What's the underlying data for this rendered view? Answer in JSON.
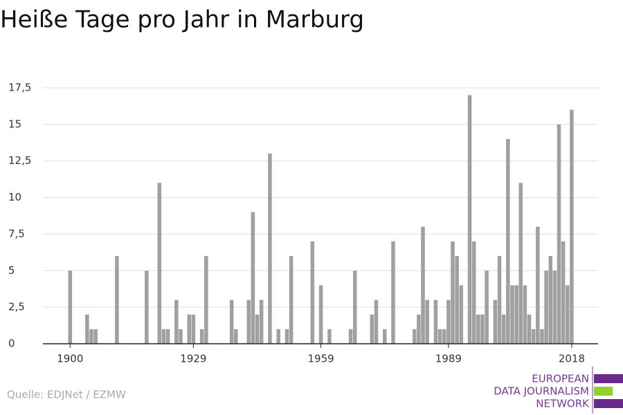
{
  "chart_data": {
    "type": "bar",
    "title": "Heiße Tage pro Jahr in Marburg",
    "source": "Quelle: EDJNet / EZMW",
    "logo": [
      "EUROPEAN",
      "DATA JOURNALISM",
      "NETWORK"
    ],
    "color": "#a0a0a0",
    "x": [
      1900,
      1901,
      1902,
      1903,
      1904,
      1905,
      1906,
      1907,
      1908,
      1909,
      1910,
      1911,
      1912,
      1913,
      1914,
      1915,
      1916,
      1917,
      1918,
      1919,
      1920,
      1921,
      1922,
      1923,
      1924,
      1925,
      1926,
      1927,
      1928,
      1929,
      1930,
      1931,
      1932,
      1933,
      1934,
      1935,
      1936,
      1937,
      1938,
      1939,
      1940,
      1941,
      1942,
      1943,
      1944,
      1945,
      1946,
      1947,
      1948,
      1949,
      1950,
      1951,
      1952,
      1953,
      1954,
      1955,
      1956,
      1957,
      1958,
      1959,
      1960,
      1961,
      1962,
      1963,
      1964,
      1965,
      1966,
      1967,
      1968,
      1969,
      1970,
      1971,
      1972,
      1973,
      1974,
      1975,
      1976,
      1977,
      1978,
      1979,
      1980,
      1981,
      1982,
      1983,
      1984,
      1985,
      1986,
      1987,
      1988,
      1989,
      1990,
      1991,
      1992,
      1993,
      1994,
      1995,
      1996,
      1997,
      1998,
      1999,
      2000,
      2001,
      2002,
      2003,
      2004,
      2005,
      2006,
      2007,
      2008,
      2009,
      2010,
      2011,
      2012,
      2013,
      2014,
      2015,
      2016,
      2017,
      2018
    ],
    "values": [
      5,
      0,
      0,
      0,
      2,
      1,
      1,
      0,
      0,
      0,
      0,
      6,
      0,
      0,
      0,
      0,
      0,
      0,
      5,
      0,
      0,
      11,
      1,
      1,
      0,
      3,
      1,
      0,
      2,
      2,
      0,
      1,
      6,
      0,
      0,
      0,
      0,
      0,
      3,
      1,
      0,
      0,
      3,
      9,
      2,
      3,
      0,
      13,
      0,
      1,
      0,
      1,
      6,
      0,
      0,
      0,
      0,
      7,
      0,
      4,
      0,
      1,
      0,
      0,
      0,
      0,
      1,
      5,
      0,
      0,
      0,
      2,
      3,
      0,
      1,
      0,
      7,
      0,
      0,
      0,
      0,
      1,
      2,
      8,
      3,
      0,
      3,
      1,
      1,
      3,
      7,
      6,
      4,
      0,
      17,
      7,
      2,
      2,
      5,
      0,
      3,
      6,
      2,
      14,
      4,
      4,
      11,
      4,
      2,
      1,
      8,
      1,
      5,
      6,
      5,
      15,
      7,
      4,
      16
    ],
    "xlim": [
      1893.6,
      2024.2
    ],
    "xticks": [
      1900,
      1929,
      1959,
      1989,
      2018
    ],
    "ylim": [
      0,
      17.5
    ],
    "yticks": [
      0,
      {
        "value": 2.5,
        "label": "2,5"
      },
      5,
      {
        "value": 7.5,
        "label": "7,5"
      },
      10,
      {
        "value": 12.5,
        "label": "12,5"
      },
      15,
      {
        "value": 17.5,
        "label": "17,5"
      }
    ],
    "grid": true
  }
}
